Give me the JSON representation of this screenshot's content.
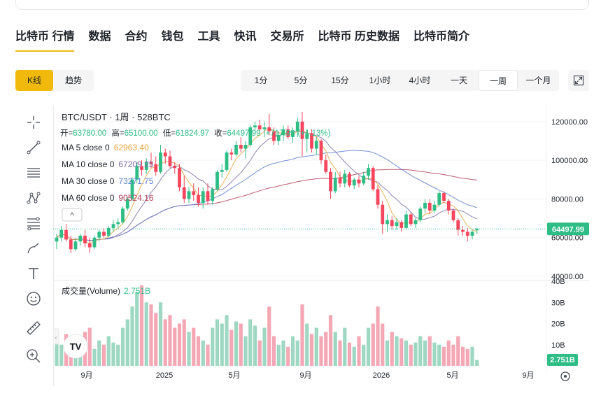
{
  "nav": {
    "items": [
      "比特币 行情",
      "数据",
      "合约",
      "钱包",
      "工具",
      "快讯",
      "交易所",
      "比特币 历史数据",
      "比特币简介"
    ]
  },
  "view_buttons": [
    "K线",
    "趋势"
  ],
  "periods": [
    "1分",
    "5分",
    "15分",
    "1小时",
    "4小时",
    "一天",
    "一周",
    "一个月"
  ],
  "active_period": "一周",
  "tools": [
    "crosshair-icon",
    "trendline-icon",
    "horizontal-lines-icon",
    "pattern-icon",
    "fib-icon",
    "brush-icon",
    "text-tool-icon",
    "emoji-icon",
    "ruler-icon",
    "zoom-in-icon"
  ],
  "legend": {
    "title": "BTC/USDT · 1周 · 528BTC",
    "ohlc_label_open": "开=",
    "ohlc_open": "63780.00",
    "ohlc_label_high": "高=",
    "ohlc_high": "65100.00",
    "ohlc_label_low": "低=",
    "ohlc_low": "61824.97",
    "ohlc_label_close": "收=",
    "ohlc_close": "64497.99",
    "change": "+717.99",
    "change_pct": "(+1.13%)",
    "ma5_label": "MA 5 close 0",
    "ma5_value": "62963.40",
    "ma10_label": "MA 10 close 0",
    "ma10_value": "67209.25",
    "ma30_label": "MA 30 close 0",
    "ma30_value": "73271.75",
    "ma60_label": "MA 60 close 0",
    "ma60_value": "90524.16",
    "collapse_glyph": "^",
    "volume_label": "成交量(Volume)",
    "volume_value": "2.751B"
  },
  "price_axis": [
    "120000.00",
    "100000.00",
    "80000.00",
    "60000.00",
    "40000.00"
  ],
  "volume_axis": [
    "40B",
    "30B",
    "20B",
    "10B"
  ],
  "last_price_tag": "64497.99",
  "last_volume_tag": "2.751B",
  "time_axis": [
    "9月",
    "2025",
    "5月",
    "9月",
    "2026",
    "5月",
    "9月"
  ],
  "watermark": "TV",
  "colors": {
    "up": "#2ebd85",
    "down": "#f6465d",
    "up_volume": "#9ed8c2",
    "down_volume": "#f4a8b5",
    "ma5": "#e8a33d",
    "ma10": "#7b6ba8",
    "ma30": "#5a7fd1",
    "ma60": "#b0415a",
    "accent": "#f0b90b"
  },
  "chart_data": {
    "type": "candlestick",
    "interval": "1周",
    "symbol": "BTC/USDT",
    "ylim": [
      40000,
      125000
    ],
    "candles": [
      [
        58000,
        62000,
        54000,
        60000
      ],
      [
        60000,
        66000,
        58000,
        64000
      ],
      [
        64000,
        67000,
        58000,
        59000
      ],
      [
        59000,
        61000,
        52000,
        54000
      ],
      [
        54000,
        60000,
        53000,
        58000
      ],
      [
        58000,
        62000,
        56000,
        61000
      ],
      [
        61000,
        64000,
        55000,
        57000
      ],
      [
        57000,
        60000,
        52000,
        55000
      ],
      [
        55000,
        61000,
        54000,
        60000
      ],
      [
        60000,
        64000,
        58000,
        63000
      ],
      [
        63000,
        65000,
        60000,
        61000
      ],
      [
        61000,
        66000,
        60000,
        65000
      ],
      [
        65000,
        69000,
        63000,
        67000
      ],
      [
        67000,
        70000,
        65000,
        68000
      ],
      [
        68000,
        76000,
        67000,
        75000
      ],
      [
        75000,
        81000,
        74000,
        80000
      ],
      [
        80000,
        91000,
        79000,
        90000
      ],
      [
        90000,
        99000,
        88000,
        97000
      ],
      [
        97000,
        100000,
        92000,
        95000
      ],
      [
        95000,
        101000,
        93000,
        99000
      ],
      [
        99000,
        104000,
        96000,
        98000
      ],
      [
        98000,
        102000,
        92000,
        94000
      ],
      [
        94000,
        108000,
        93000,
        104000
      ],
      [
        104000,
        106000,
        98000,
        102000
      ],
      [
        102000,
        105000,
        96000,
        97000
      ],
      [
        97000,
        99000,
        93000,
        96000
      ],
      [
        96000,
        98000,
        84000,
        86000
      ],
      [
        86000,
        92000,
        78000,
        80000
      ],
      [
        80000,
        86000,
        78000,
        84000
      ],
      [
        84000,
        88000,
        79000,
        82000
      ],
      [
        82000,
        86000,
        76000,
        78000
      ],
      [
        78000,
        86000,
        75000,
        84000
      ],
      [
        84000,
        88000,
        77000,
        79000
      ],
      [
        79000,
        86000,
        77000,
        85000
      ],
      [
        85000,
        95000,
        84000,
        94000
      ],
      [
        94000,
        98000,
        91000,
        95000
      ],
      [
        95000,
        105000,
        94000,
        104000
      ],
      [
        104000,
        106000,
        100000,
        103000
      ],
      [
        103000,
        110000,
        102000,
        108000
      ],
      [
        108000,
        112000,
        104000,
        106000
      ],
      [
        106000,
        110000,
        101000,
        108000
      ],
      [
        108000,
        118000,
        107000,
        117000
      ],
      [
        117000,
        120000,
        114000,
        118000
      ],
      [
        118000,
        121000,
        115000,
        116000
      ],
      [
        116000,
        120000,
        112000,
        117000
      ],
      [
        117000,
        124000,
        113000,
        115000
      ],
      [
        115000,
        117000,
        108000,
        110000
      ],
      [
        110000,
        115000,
        108000,
        113000
      ],
      [
        113000,
        118000,
        110000,
        116000
      ],
      [
        116000,
        118000,
        111000,
        112000
      ],
      [
        112000,
        117000,
        109000,
        115000
      ],
      [
        115000,
        122000,
        112000,
        120000
      ],
      [
        120000,
        125000,
        102000,
        111000
      ],
      [
        111000,
        116000,
        104000,
        114000
      ],
      [
        114000,
        116000,
        104000,
        106000
      ],
      [
        106000,
        112000,
        103000,
        110000
      ],
      [
        110000,
        111000,
        98000,
        100000
      ],
      [
        100000,
        103000,
        93000,
        94000
      ],
      [
        94000,
        96000,
        80000,
        84000
      ],
      [
        84000,
        94000,
        83000,
        91000
      ],
      [
        91000,
        94000,
        86000,
        88000
      ],
      [
        88000,
        95000,
        86000,
        93000
      ],
      [
        93000,
        94000,
        86000,
        87000
      ],
      [
        87000,
        91000,
        85000,
        90000
      ],
      [
        90000,
        92000,
        86000,
        88000
      ],
      [
        88000,
        94000,
        87000,
        92000
      ],
      [
        92000,
        98000,
        90000,
        96000
      ],
      [
        96000,
        97000,
        84000,
        85000
      ],
      [
        85000,
        87000,
        75000,
        77000
      ],
      [
        77000,
        79000,
        62000,
        67000
      ],
      [
        67000,
        72000,
        63000,
        69000
      ],
      [
        69000,
        71000,
        64000,
        66000
      ],
      [
        66000,
        70000,
        64000,
        68000
      ],
      [
        68000,
        69000,
        63000,
        65000
      ],
      [
        65000,
        74000,
        64000,
        72000
      ],
      [
        72000,
        73000,
        66000,
        67000
      ],
      [
        67000,
        70000,
        65000,
        69000
      ],
      [
        69000,
        76000,
        68000,
        75000
      ],
      [
        75000,
        80000,
        73000,
        78000
      ],
      [
        78000,
        80000,
        72000,
        74000
      ],
      [
        74000,
        79000,
        73000,
        77000
      ],
      [
        77000,
        84000,
        76000,
        83000
      ],
      [
        83000,
        84000,
        78000,
        79000
      ],
      [
        79000,
        80000,
        72000,
        74000
      ],
      [
        74000,
        75000,
        68000,
        69000
      ],
      [
        69000,
        70000,
        61000,
        64000
      ],
      [
        64000,
        66000,
        61000,
        63000
      ],
      [
        63000,
        65000,
        58000,
        61000
      ],
      [
        61000,
        64000,
        59000,
        63000
      ],
      [
        63780,
        65100,
        61824.97,
        64497.99
      ]
    ],
    "volumes": [
      12,
      10,
      15,
      13,
      14,
      9,
      16,
      18,
      8,
      12,
      10,
      14,
      11,
      10,
      18,
      22,
      28,
      35,
      38,
      30,
      29,
      25,
      30,
      22,
      24,
      18,
      20,
      22,
      16,
      18,
      14,
      12,
      10,
      18,
      22,
      20,
      24,
      17,
      21,
      20,
      14,
      22,
      19,
      12,
      18,
      28,
      14,
      10,
      12,
      9,
      14,
      12,
      29,
      20,
      15,
      18,
      14,
      16,
      24,
      16,
      12,
      18,
      11,
      9,
      14,
      10,
      18,
      20,
      28,
      20,
      12,
      16,
      14,
      13,
      12,
      10,
      11,
      14,
      12,
      14,
      11,
      10,
      9,
      12,
      10,
      14,
      9,
      8,
      9,
      2.751
    ]
  }
}
